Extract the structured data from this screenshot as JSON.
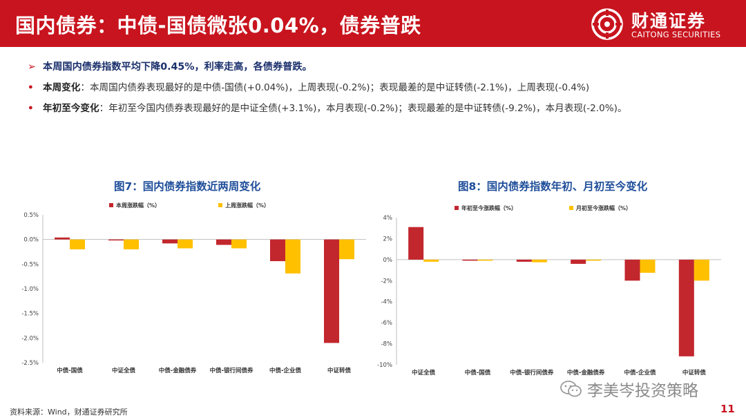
{
  "header": {
    "title": "国内债券：中债-国债微张0.04%，债券普跌",
    "logo_cn": "财通证券",
    "logo_en": "CAITONG SECURITIES"
  },
  "bullets": {
    "summary_marker": "➢",
    "summary": "本周国内债券指数平均下降0.45%，利率走高，各债券普跌。",
    "item_marker": "•",
    "item1_label": "本周变化",
    "item1_text": "：本周国内债券表现最好的是中债-国债(+0.04%)，上周表现(-0.2%)；表现最差的是中证转债(-2.1%)，上周表现(-0.4%)",
    "item2_label": "年初至今变化",
    "item2_text": "：年初至今国内债券表现最好的是中证全债(+3.1%)，本月表现(-0.2%)；表现最差的是中证转债(-9.2%)，本月表现(-2.0%)。"
  },
  "footer": {
    "source": "资料来源：Wind，财通证券研究所",
    "watermark": "李美岑投资策略",
    "page_number": "11"
  },
  "colors": {
    "red": "#c8141e",
    "series1": "#c2272d",
    "series2": "#ffc000",
    "title_blue": "#1f4e9a"
  },
  "chart_data": [
    {
      "type": "bar",
      "title": "图7：国内债券指数近两周变化",
      "categories": [
        "中债-国债",
        "中证全债",
        "中债-金融债券",
        "中债-银行间债券",
        "中债-企业债",
        "中证转债"
      ],
      "series": [
        {
          "name": "本周涨跌幅（%）",
          "color": "#c2272d",
          "values": [
            0.04,
            -0.02,
            -0.08,
            -0.11,
            -0.44,
            -2.1
          ]
        },
        {
          "name": "上周涨跌幅（%）",
          "color": "#ffc000",
          "values": [
            -0.2,
            -0.2,
            -0.18,
            -0.18,
            -0.69,
            -0.4
          ]
        }
      ],
      "yticks": [
        "0.5%",
        "0.0%",
        "-0.5%",
        "-1.0%",
        "-1.5%",
        "-2.0%",
        "-2.5%"
      ],
      "ylim": [
        -2.5,
        0.5
      ],
      "legend": "top"
    },
    {
      "type": "bar",
      "title": "图8：国内债券指数年初、月初至今变化",
      "categories": [
        "中证全债",
        "中债-国债",
        "中债-银行间债券",
        "中债-金融债券",
        "中债-企业债",
        "中证转债"
      ],
      "series": [
        {
          "name": "年初至今涨跌幅（%）",
          "color": "#c2272d",
          "values": [
            3.1,
            -0.1,
            -0.2,
            -0.4,
            -2.0,
            -9.2
          ]
        },
        {
          "name": "月初至今涨跌幅（%）",
          "color": "#ffc000",
          "values": [
            -0.2,
            -0.1,
            -0.25,
            -0.1,
            -1.25,
            -2.0
          ]
        }
      ],
      "yticks": [
        "4%",
        "2%",
        "0%",
        "-2%",
        "-4%",
        "-6%",
        "-8%",
        "-10%"
      ],
      "ylim": [
        -10,
        4
      ],
      "legend": "top"
    }
  ]
}
